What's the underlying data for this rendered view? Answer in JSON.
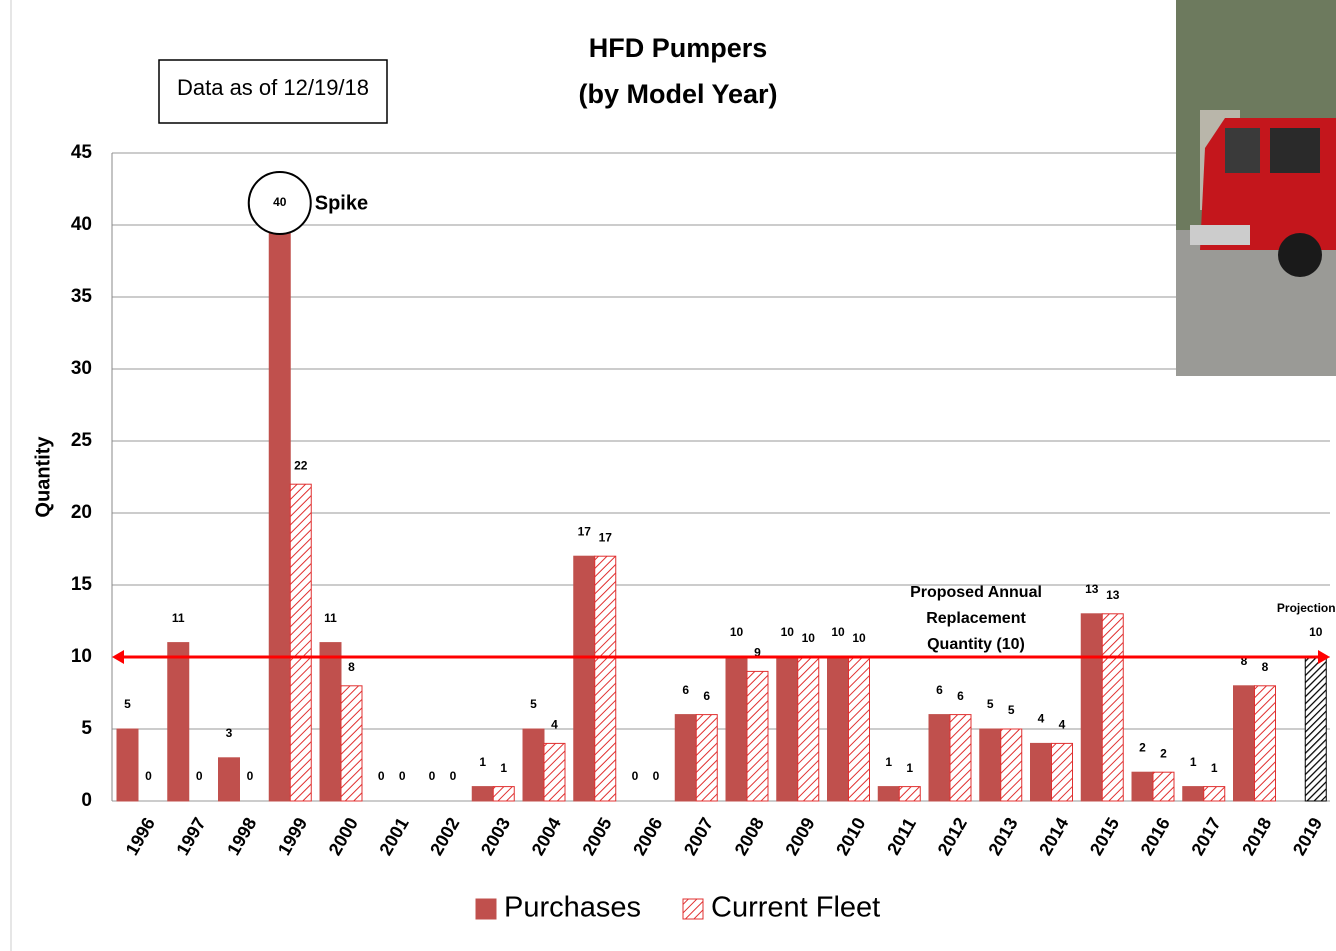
{
  "chart_data": {
    "type": "bar",
    "title": [
      "HFD Pumpers",
      "(by Model Year)"
    ],
    "note": "Data as of 12/19/18",
    "y_label": "Quantity",
    "categories": [
      "1996",
      "1997",
      "1998",
      "1999",
      "2000",
      "2001",
      "2002",
      "2003",
      "2004",
      "2005",
      "2006",
      "2007",
      "2008",
      "2009",
      "2010",
      "2011",
      "2012",
      "2013",
      "2014",
      "2015",
      "2016",
      "2017",
      "2018",
      "2019"
    ],
    "series": [
      {
        "name": "Purchases",
        "color": "#c0504d",
        "fill": "solid",
        "values": [
          5,
          11,
          3,
          40,
          11,
          0,
          0,
          1,
          5,
          17,
          0,
          6,
          10,
          10,
          10,
          1,
          6,
          5,
          4,
          13,
          2,
          1,
          8,
          null
        ]
      },
      {
        "name": "Current Fleet",
        "color": "#e03030",
        "fill": "hatch",
        "values": [
          0,
          0,
          0,
          22,
          8,
          0,
          0,
          1,
          4,
          17,
          0,
          6,
          9,
          10,
          10,
          1,
          6,
          5,
          4,
          13,
          2,
          1,
          8,
          null
        ]
      }
    ],
    "projection": {
      "label": "Projection",
      "value": 10,
      "color": "#000000"
    },
    "reference_line": {
      "value": 10,
      "label": [
        "Proposed Annual",
        "Replacement",
        "Quantity (10)"
      ],
      "color": "#ff0000"
    },
    "spike_label": "Spike",
    "ylim": [
      0,
      45
    ],
    "yticks": [
      0,
      5,
      10,
      15,
      20,
      25,
      30,
      35,
      40,
      45
    ],
    "grid": true
  }
}
